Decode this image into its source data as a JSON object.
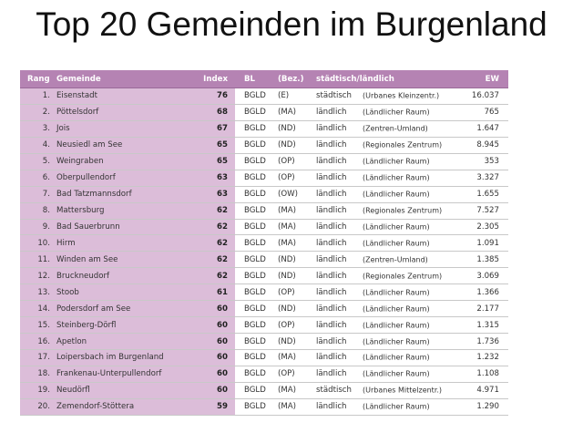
{
  "title": "Top 20 Gemeinden im Burgenland",
  "colors": {
    "header": "#b583b3",
    "left_rows": "#dcbdd9"
  },
  "columns": {
    "rang": "Rang",
    "gemeinde": "Gemeinde",
    "index": "Index",
    "bl": "BL",
    "bez": "(Bez.)",
    "su": "städtisch/ländlich",
    "ew": "EW"
  },
  "rows": [
    [
      "1.",
      "Eisenstadt",
      "76",
      "BGLD",
      "(E)",
      "städtisch",
      "(Urbanes Kleinzentr.)",
      "16.037"
    ],
    [
      "2.",
      "Pöttelsdorf",
      "68",
      "BGLD",
      "(MA)",
      "ländlich",
      "(Ländlicher Raum)",
      "765"
    ],
    [
      "3.",
      "Jois",
      "67",
      "BGLD",
      "(ND)",
      "ländlich",
      "(Zentren-Umland)",
      "1.647"
    ],
    [
      "4.",
      "Neusiedl am See",
      "65",
      "BGLD",
      "(ND)",
      "ländlich",
      "(Regionales Zentrum)",
      "8.945"
    ],
    [
      "5.",
      "Weingraben",
      "65",
      "BGLD",
      "(OP)",
      "ländlich",
      "(Ländlicher Raum)",
      "353"
    ],
    [
      "6.",
      "Oberpullendorf",
      "63",
      "BGLD",
      "(OP)",
      "ländlich",
      "(Ländlicher Raum)",
      "3.327"
    ],
    [
      "7.",
      "Bad Tatzmannsdorf",
      "63",
      "BGLD",
      "(OW)",
      "ländlich",
      "(Ländlicher Raum)",
      "1.655"
    ],
    [
      "8.",
      "Mattersburg",
      "62",
      "BGLD",
      "(MA)",
      "ländlich",
      "(Regionales Zentrum)",
      "7.527"
    ],
    [
      "9.",
      "Bad Sauerbrunn",
      "62",
      "BGLD",
      "(MA)",
      "ländlich",
      "(Ländlicher Raum)",
      "2.305"
    ],
    [
      "10.",
      "Hirm",
      "62",
      "BGLD",
      "(MA)",
      "ländlich",
      "(Ländlicher Raum)",
      "1.091"
    ],
    [
      "11.",
      "Winden am See",
      "62",
      "BGLD",
      "(ND)",
      "ländlich",
      "(Zentren-Umland)",
      "1.385"
    ],
    [
      "12.",
      "Bruckneudorf",
      "62",
      "BGLD",
      "(ND)",
      "ländlich",
      "(Regionales Zentrum)",
      "3.069"
    ],
    [
      "13.",
      "Stoob",
      "61",
      "BGLD",
      "(OP)",
      "ländlich",
      "(Ländlicher Raum)",
      "1.366"
    ],
    [
      "14.",
      "Podersdorf am See",
      "60",
      "BGLD",
      "(ND)",
      "ländlich",
      "(Ländlicher Raum)",
      "2.177"
    ],
    [
      "15.",
      "Steinberg-Dörfl",
      "60",
      "BGLD",
      "(OP)",
      "ländlich",
      "(Ländlicher Raum)",
      "1.315"
    ],
    [
      "16.",
      "Apetlon",
      "60",
      "BGLD",
      "(ND)",
      "ländlich",
      "(Ländlicher Raum)",
      "1.736"
    ],
    [
      "17.",
      "Loipersbach im Burgenland",
      "60",
      "BGLD",
      "(MA)",
      "ländlich",
      "(Ländlicher Raum)",
      "1.232"
    ],
    [
      "18.",
      "Frankenau-Unterpullendorf",
      "60",
      "BGLD",
      "(OP)",
      "ländlich",
      "(Ländlicher Raum)",
      "1.108"
    ],
    [
      "19.",
      "Neudörfl",
      "60",
      "BGLD",
      "(MA)",
      "städtisch",
      "(Urbanes Mittelzentr.)",
      "4.971"
    ],
    [
      "20.",
      "Zemendorf-Stöttera",
      "59",
      "BGLD",
      "(MA)",
      "ländlich",
      "(Ländlicher Raum)",
      "1.290"
    ]
  ]
}
